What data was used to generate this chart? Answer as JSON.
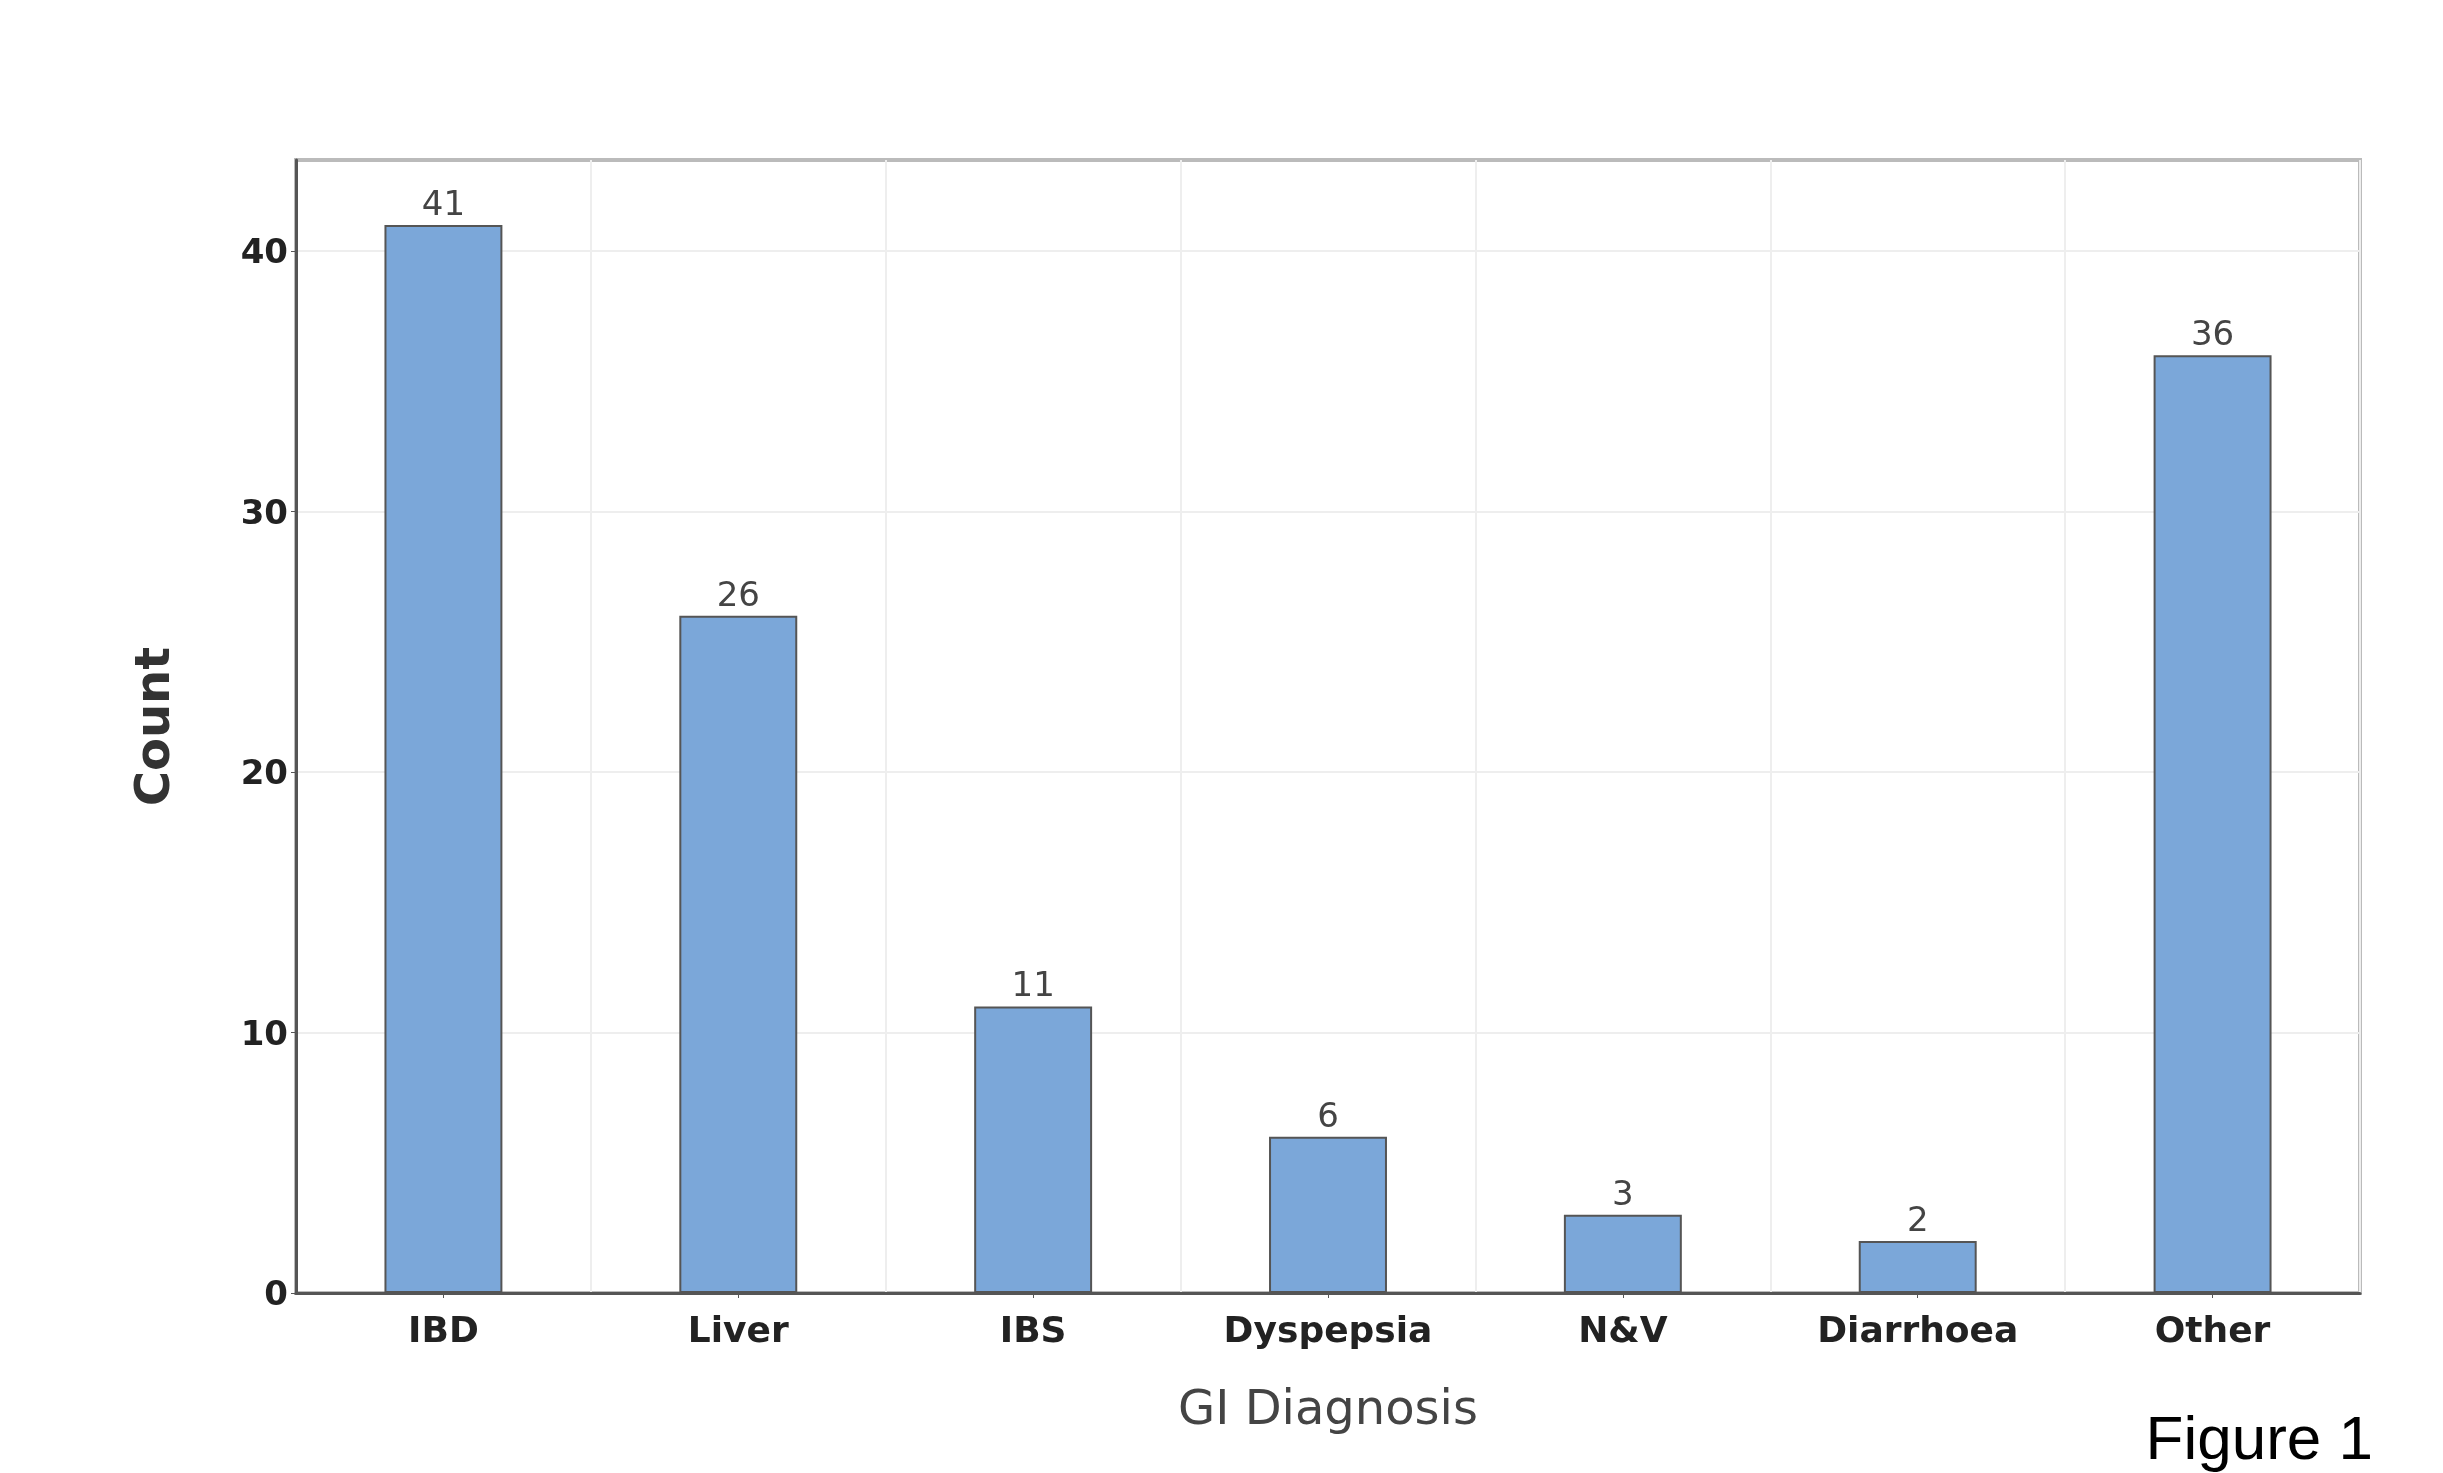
{
  "chart_data": {
    "type": "bar",
    "xlabel": "GI Diagnosis",
    "ylabel": "Count",
    "categories": [
      "IBD",
      "Liver",
      "IBS",
      "Dyspepsia",
      "N&V",
      "Diarrhoea",
      "Other"
    ],
    "values": [
      41,
      26,
      11,
      6,
      3,
      2,
      36
    ],
    "color": "#7ba7d9",
    "ylim": [
      0,
      43.5
    ],
    "yticks": [
      0,
      10,
      20,
      30,
      40
    ],
    "grid": true,
    "data_labels": true,
    "annotations": [
      "Figure 1"
    ]
  }
}
